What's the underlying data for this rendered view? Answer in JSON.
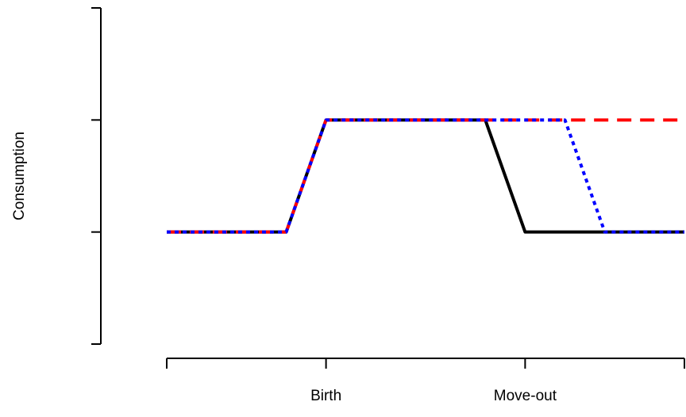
{
  "chart_data": {
    "type": "line",
    "y_label": "Consumption",
    "xlim": [
      0,
      13
    ],
    "ylim": [
      0,
      3
    ],
    "xticks": [
      {
        "value": 0,
        "label": null
      },
      {
        "value": 4,
        "label": "Birth"
      },
      {
        "value": 9,
        "label": "Move-out"
      },
      {
        "value": 13,
        "label": null
      }
    ],
    "yticks": [
      {
        "value": 0,
        "label": null
      },
      {
        "value": 1,
        "label": null
      },
      {
        "value": 2,
        "label": null
      },
      {
        "value": 3,
        "label": null
      }
    ],
    "series": [
      {
        "color": "#000000",
        "dash": "solid",
        "x": [
          0,
          3,
          4,
          8,
          9,
          13
        ],
        "values": [
          1,
          1,
          2,
          2,
          1,
          1
        ]
      },
      {
        "color": "#ff0000",
        "dash": "dashed",
        "x": [
          0,
          3,
          4,
          13
        ],
        "values": [
          1,
          1,
          2,
          2
        ]
      },
      {
        "color": "#0000ff",
        "dash": "dotted",
        "x": [
          0,
          3,
          4,
          10,
          11,
          13
        ],
        "values": [
          1,
          1,
          2,
          2,
          1,
          1
        ]
      }
    ]
  }
}
